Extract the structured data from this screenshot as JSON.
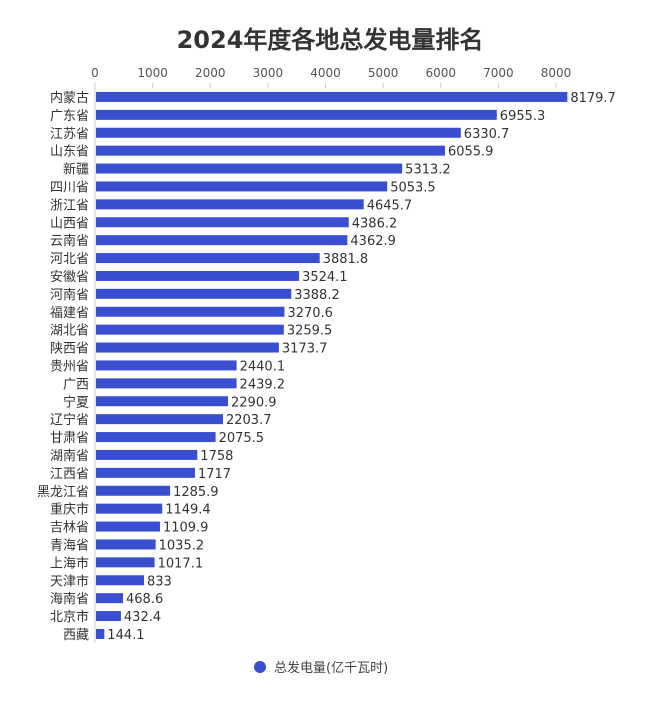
{
  "chart_data": {
    "type": "bar",
    "orientation": "horizontal",
    "title": "2024年度各地总发电量排名",
    "categories": [
      "内蒙古",
      "广东省",
      "江苏省",
      "山东省",
      "新疆",
      "四川省",
      "浙江省",
      "山西省",
      "云南省",
      "河北省",
      "安徽省",
      "河南省",
      "福建省",
      "湖北省",
      "陕西省",
      "贵州省",
      "广西",
      "宁夏",
      "辽宁省",
      "甘肃省",
      "湖南省",
      "江西省",
      "黑龙江省",
      "重庆市",
      "吉林省",
      "青海省",
      "上海市",
      "天津市",
      "海南省",
      "北京市",
      "西藏"
    ],
    "series": [
      {
        "name": "总发电量(亿千瓦时)",
        "values": [
          8179.7,
          6955.3,
          6330.7,
          6055.9,
          5313.2,
          5053.5,
          4645.7,
          4386.2,
          4362.9,
          3881.8,
          3524.1,
          3388.2,
          3270.6,
          3259.5,
          3173.7,
          2440.1,
          2439.2,
          2290.9,
          2203.7,
          2075.5,
          1758,
          1717,
          1285.9,
          1149.4,
          1109.9,
          1035.2,
          1017.1,
          833,
          468.6,
          432.4,
          144.1
        ]
      }
    ],
    "value_labels": [
      "8179.7",
      "6955.3",
      "6330.7",
      "6055.9",
      "5313.2",
      "5053.5",
      "4645.7",
      "4386.2",
      "4362.9",
      "3881.8",
      "3524.1",
      "3388.2",
      "3270.6",
      "3259.5",
      "3173.7",
      "2440.1",
      "2439.2",
      "2290.9",
      "2203.7",
      "2075.5",
      "1758",
      "1717",
      "1285.9",
      "1149.4",
      "1109.9",
      "1035.2",
      "1017.1",
      "833",
      "468.6",
      "432.4",
      "144.1"
    ],
    "xaxis_position": "top",
    "xlim": [
      0,
      8000
    ],
    "xticks": [
      "0",
      "1000",
      "2000",
      "3000",
      "4000",
      "5000",
      "6000",
      "7000",
      "8000"
    ],
    "grid": false,
    "legend": "bottom",
    "bar_color": "#3a4fd0"
  }
}
